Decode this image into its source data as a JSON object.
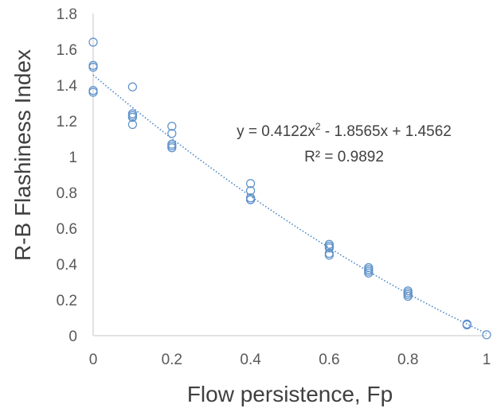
{
  "chart_data": {
    "type": "scatter",
    "xlabel": "Flow persistence, Fp",
    "ylabel": "R-B Flashiness Index",
    "xlim": [
      0,
      1
    ],
    "ylim": [
      0,
      1.8
    ],
    "x_ticks": [
      "0",
      "0.2",
      "0.4",
      "0.6",
      "0.8",
      "1"
    ],
    "y_ticks": [
      "0",
      "0.2",
      "0.4",
      "0.6",
      "0.8",
      "1",
      "1.2",
      "1.4",
      "1.6",
      "1.8"
    ],
    "grid": false,
    "series": [
      {
        "points": [
          [
            0,
            1.64
          ],
          [
            0,
            1.51
          ],
          [
            0,
            1.5
          ],
          [
            0,
            1.37
          ],
          [
            0,
            1.36
          ],
          [
            0.1,
            1.39
          ],
          [
            0.1,
            1.24
          ],
          [
            0.1,
            1.23
          ],
          [
            0.1,
            1.22
          ],
          [
            0.1,
            1.18
          ],
          [
            0.2,
            1.17
          ],
          [
            0.2,
            1.13
          ],
          [
            0.2,
            1.07
          ],
          [
            0.2,
            1.06
          ],
          [
            0.2,
            1.05
          ],
          [
            0.4,
            0.85
          ],
          [
            0.4,
            0.81
          ],
          [
            0.4,
            0.77
          ],
          [
            0.4,
            0.76
          ],
          [
            0.4,
            0.76
          ],
          [
            0.6,
            0.51
          ],
          [
            0.6,
            0.5
          ],
          [
            0.6,
            0.49
          ],
          [
            0.6,
            0.46
          ],
          [
            0.6,
            0.45
          ],
          [
            0.7,
            0.38
          ],
          [
            0.7,
            0.37
          ],
          [
            0.7,
            0.36
          ],
          [
            0.7,
            0.35
          ],
          [
            0.8,
            0.25
          ],
          [
            0.8,
            0.24
          ],
          [
            0.8,
            0.23
          ],
          [
            0.8,
            0.22
          ],
          [
            0.95,
            0.065
          ],
          [
            0.95,
            0.06
          ],
          [
            1,
            0.005
          ]
        ],
        "color": "#5B8FC9"
      }
    ],
    "trendline": {
      "type": "polynomial",
      "coefficients": [
        0.4122,
        -1.8565,
        1.4562
      ],
      "equation_label": "y = 0.4122x",
      "equation_exponent": "2",
      "equation_rest": " - 1.8565x + 1.4562",
      "r2_label": "R² = 0.9892",
      "color": "#4A86C8"
    }
  }
}
